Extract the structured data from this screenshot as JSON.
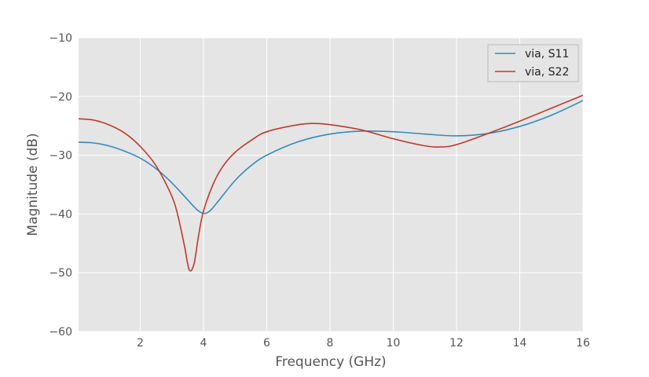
{
  "chart_data": {
    "type": "line",
    "xlabel": "Frequency (GHz)",
    "ylabel": "Magnitude (dB)",
    "xlim": [
      0.05,
      16
    ],
    "ylim": [
      -60,
      -10
    ],
    "xticks": [
      2,
      4,
      6,
      8,
      10,
      12,
      14,
      16
    ],
    "xtick_labels": [
      "2",
      "4",
      "6",
      "8",
      "10",
      "12",
      "14",
      "16"
    ],
    "yticks": [
      -60,
      -50,
      -40,
      -30,
      -20,
      -10
    ],
    "ytick_labels": [
      "−60",
      "−50",
      "−40",
      "−30",
      "−20",
      "−10"
    ],
    "grid": true,
    "legend_position": "top-right",
    "series": [
      {
        "name": "via, S11",
        "color": "#348abd",
        "x": [
          0.05,
          0.5,
          1,
          1.5,
          2,
          2.5,
          3,
          3.5,
          3.8,
          4,
          4.2,
          4.5,
          5,
          5.5,
          6,
          7,
          8,
          9,
          10,
          11,
          12,
          13,
          14,
          15,
          16
        ],
        "y": [
          -27.8,
          -27.9,
          -28.4,
          -29.3,
          -30.5,
          -32.3,
          -34.7,
          -37.6,
          -39.3,
          -39.9,
          -39.5,
          -37.6,
          -34.3,
          -31.8,
          -30,
          -27.7,
          -26.4,
          -25.9,
          -26,
          -26.4,
          -26.7,
          -26.3,
          -25.1,
          -23.2,
          -20.7
        ]
      },
      {
        "name": "via, S22",
        "color": "#c0392b",
        "x": [
          0.05,
          0.5,
          1,
          1.5,
          2,
          2.5,
          3,
          3.2,
          3.4,
          3.55,
          3.7,
          3.85,
          4,
          4.3,
          4.6,
          5,
          5.5,
          6,
          7,
          7.5,
          8,
          9,
          10,
          11,
          11.5,
          12,
          13,
          14,
          15,
          16
        ],
        "y": [
          -23.8,
          -24,
          -24.8,
          -26.2,
          -28.5,
          -31.8,
          -37,
          -40.5,
          -45.5,
          -49.5,
          -48.5,
          -43.5,
          -39.5,
          -35,
          -32,
          -29.5,
          -27.5,
          -26,
          -24.8,
          -24.6,
          -24.8,
          -25.7,
          -27.2,
          -28.4,
          -28.6,
          -28.2,
          -26.3,
          -24.2,
          -22,
          -19.8
        ]
      }
    ]
  }
}
